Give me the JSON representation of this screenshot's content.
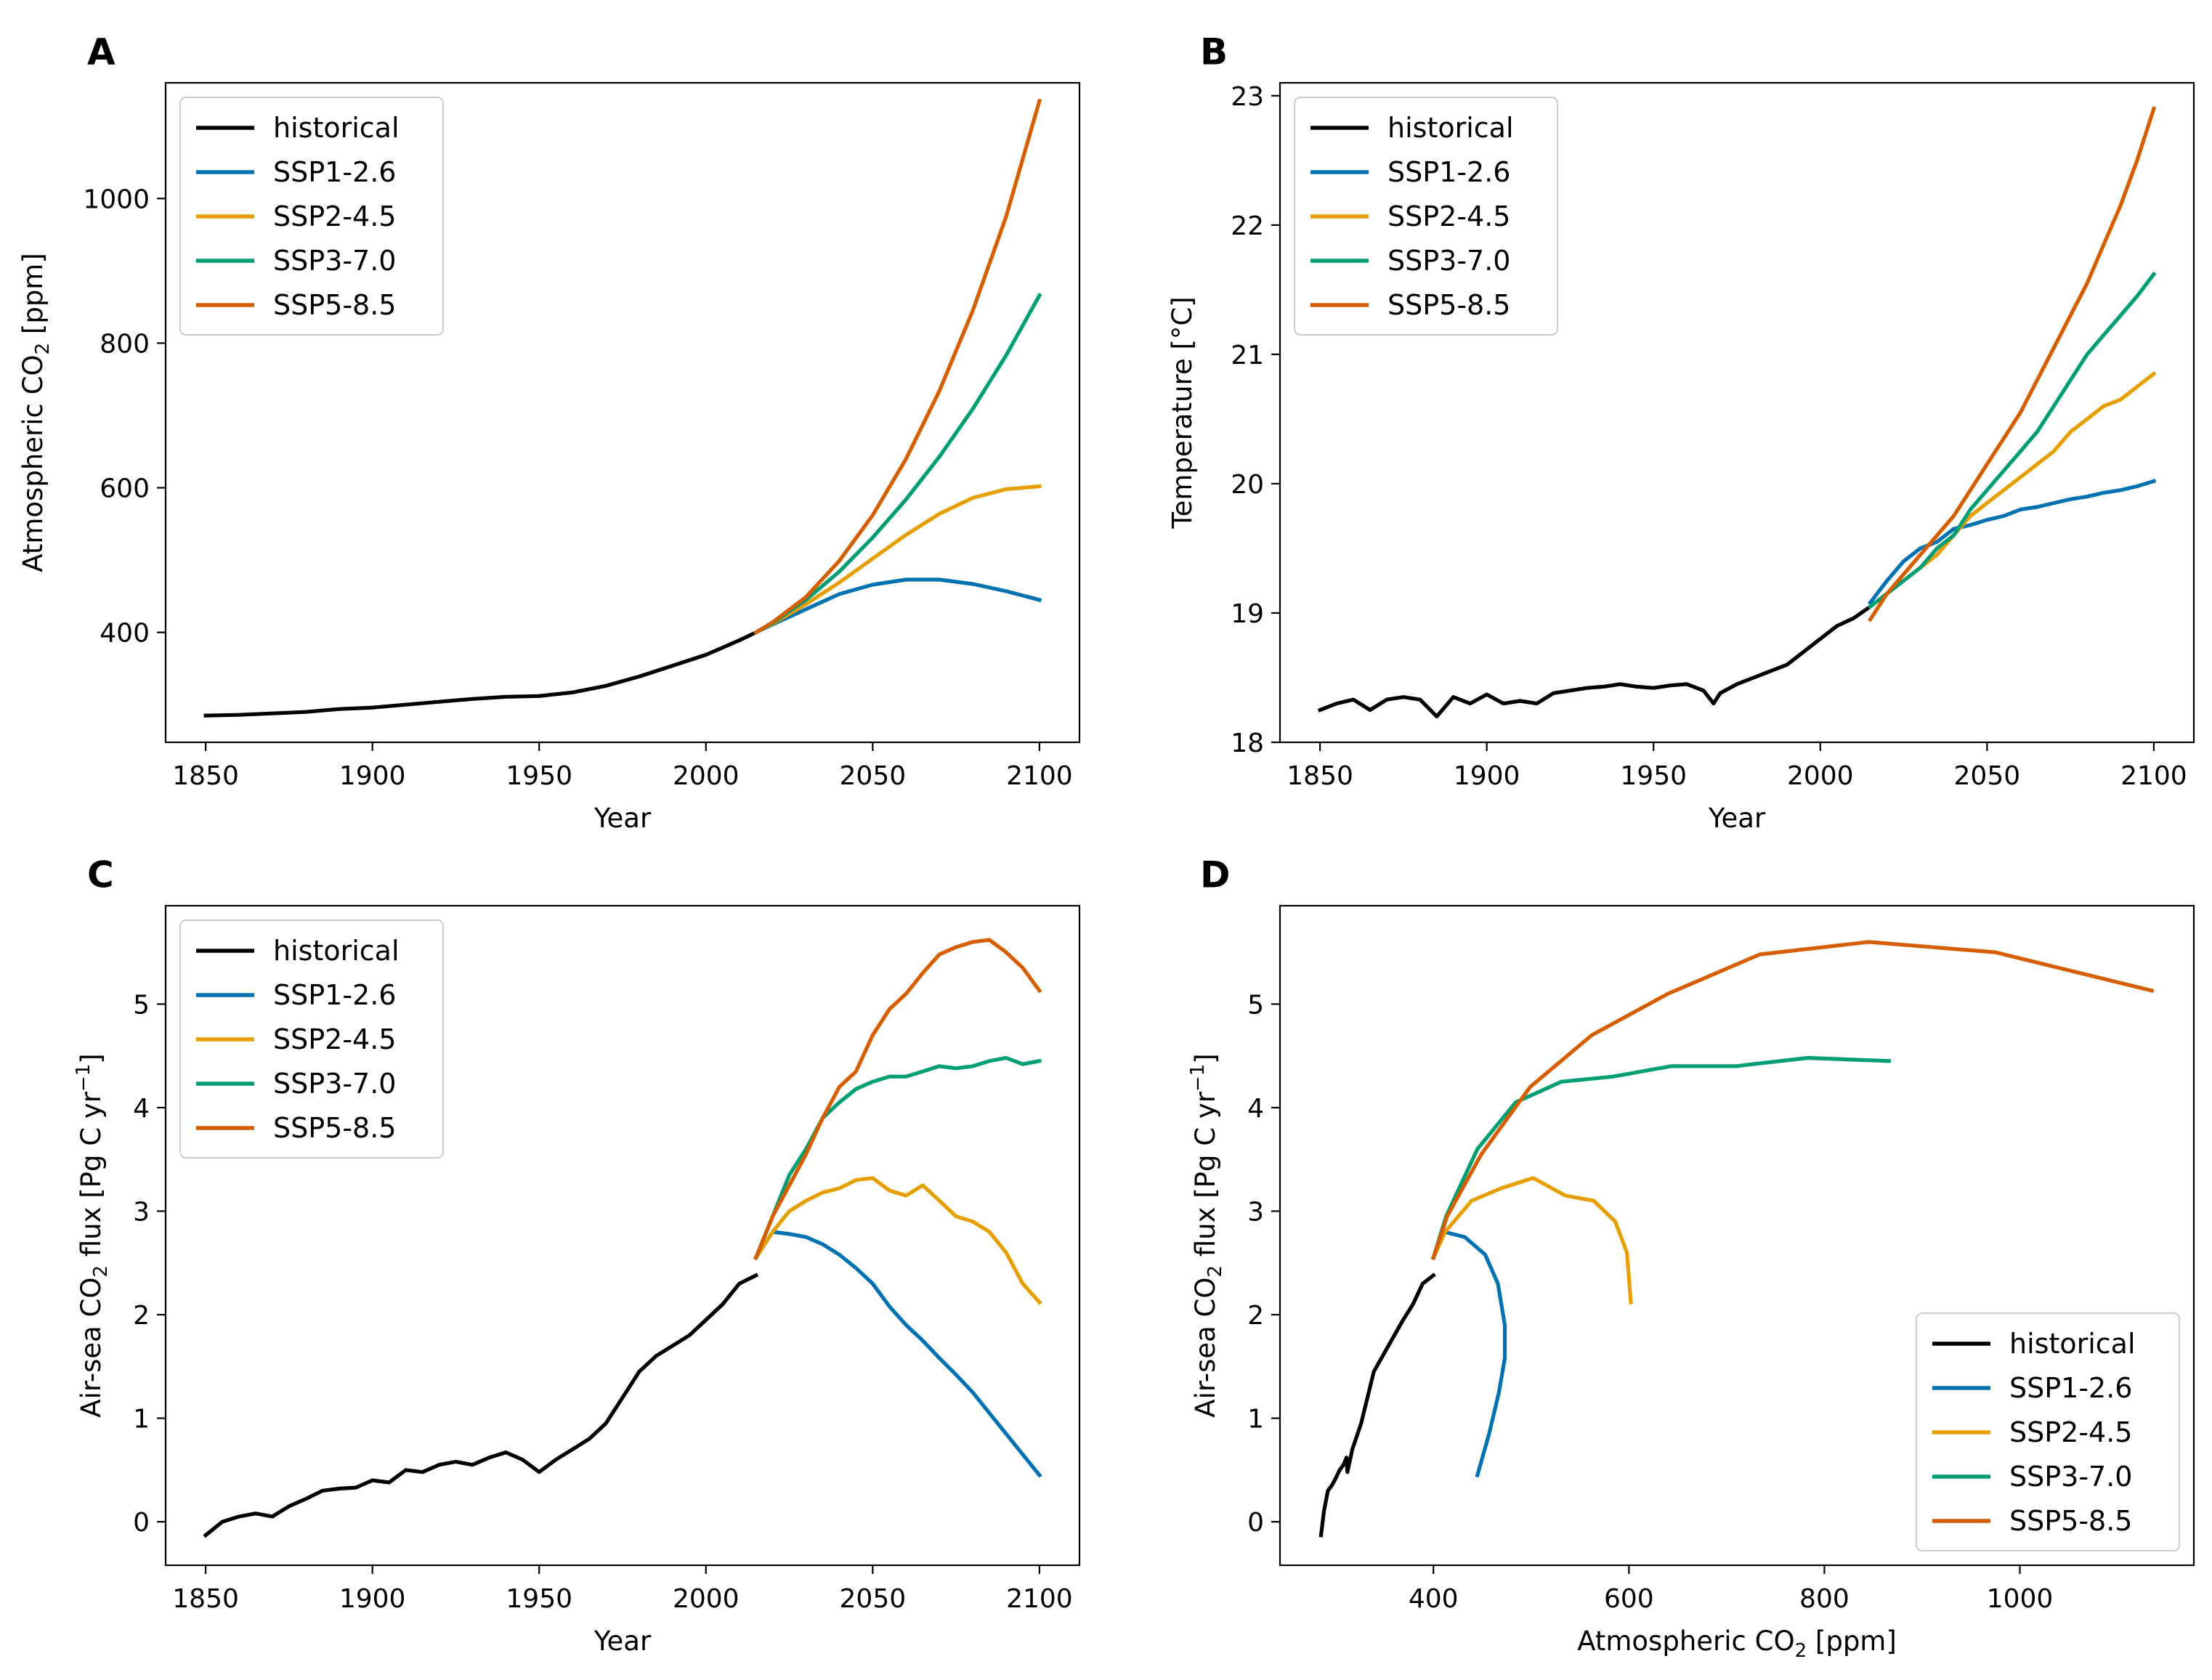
{
  "figure": {
    "series_styles": [
      {
        "name": "historical",
        "color": "#000000"
      },
      {
        "name": "SSP1-2.6",
        "color": "#0072B2"
      },
      {
        "name": "SSP2-4.5",
        "color": "#E69F00"
      },
      {
        "name": "SSP3-7.0",
        "color": "#009E73"
      },
      {
        "name": "SSP5-8.5",
        "color": "#D55E00"
      }
    ]
  },
  "chart_data": [
    {
      "panel": "A",
      "type": "line",
      "title": "",
      "xlabel": "Year",
      "ylabel_main": "Atmospheric CO",
      "ylabel_sub": "2",
      "ylabel_tail": " [ppm]",
      "xlim": [
        1838,
        2112
      ],
      "ylim": [
        248,
        1160
      ],
      "xticks": [
        1850,
        1900,
        1950,
        2000,
        2050,
        2100
      ],
      "yticks": [
        400,
        600,
        800,
        1000
      ],
      "legend_position": "upper-left",
      "grid": false,
      "series": [
        {
          "name": "historical",
          "color": "#000000",
          "x": [
            1850,
            1860,
            1870,
            1880,
            1890,
            1900,
            1910,
            1920,
            1930,
            1940,
            1950,
            1960,
            1970,
            1980,
            1990,
            2000,
            2005,
            2010,
            2015
          ],
          "y": [
            285,
            286,
            288,
            290,
            294,
            296,
            300,
            304,
            308,
            311,
            312,
            317,
            326,
            339,
            354,
            369,
            379,
            389,
            400
          ]
        },
        {
          "name": "SSP1-2.6",
          "color": "#0072B2",
          "x": [
            2015,
            2020,
            2030,
            2040,
            2050,
            2060,
            2070,
            2080,
            2090,
            2100
          ],
          "y": [
            400,
            411,
            432,
            453,
            466,
            473,
            473,
            467,
            457,
            445
          ]
        },
        {
          "name": "SSP2-4.5",
          "color": "#E69F00",
          "x": [
            2015,
            2020,
            2030,
            2040,
            2050,
            2060,
            2070,
            2080,
            2090,
            2100
          ],
          "y": [
            400,
            412,
            439,
            469,
            502,
            535,
            564,
            586,
            598,
            602
          ]
        },
        {
          "name": "SSP3-7.0",
          "color": "#009E73",
          "x": [
            2015,
            2020,
            2030,
            2040,
            2050,
            2060,
            2070,
            2080,
            2090,
            2100
          ],
          "y": [
            400,
            413,
            445,
            484,
            531,
            584,
            643,
            709,
            783,
            866
          ]
        },
        {
          "name": "SSP5-8.5",
          "color": "#D55E00",
          "x": [
            2015,
            2020,
            2030,
            2040,
            2050,
            2060,
            2070,
            2080,
            2090,
            2100
          ],
          "y": [
            400,
            414,
            449,
            499,
            562,
            640,
            734,
            845,
            975,
            1135
          ]
        }
      ]
    },
    {
      "panel": "B",
      "type": "line",
      "title": "",
      "xlabel": "Year",
      "ylabel": "Temperature [°C]",
      "xlim": [
        1838,
        2112
      ],
      "ylim": [
        18.0,
        23.1
      ],
      "xticks": [
        1850,
        1900,
        1950,
        2000,
        2050,
        2100
      ],
      "yticks": [
        18,
        19,
        20,
        21,
        22,
        23
      ],
      "legend_position": "upper-left",
      "grid": false,
      "series": [
        {
          "name": "historical",
          "color": "#000000",
          "x": [
            1850,
            1855,
            1860,
            1865,
            1870,
            1875,
            1880,
            1885,
            1890,
            1895,
            1900,
            1905,
            1910,
            1915,
            1920,
            1925,
            1930,
            1935,
            1940,
            1945,
            1950,
            1955,
            1960,
            1965,
            1968,
            1970,
            1975,
            1980,
            1985,
            1990,
            1995,
            2000,
            2005,
            2010,
            2015
          ],
          "y": [
            18.25,
            18.3,
            18.33,
            18.25,
            18.33,
            18.35,
            18.33,
            18.2,
            18.35,
            18.3,
            18.37,
            18.3,
            18.32,
            18.3,
            18.38,
            18.4,
            18.42,
            18.43,
            18.45,
            18.43,
            18.42,
            18.44,
            18.45,
            18.4,
            18.3,
            18.38,
            18.45,
            18.5,
            18.55,
            18.6,
            18.7,
            18.8,
            18.9,
            18.96,
            19.05
          ]
        },
        {
          "name": "SSP1-2.6",
          "color": "#0072B2",
          "x": [
            2015,
            2020,
            2025,
            2030,
            2035,
            2040,
            2045,
            2050,
            2055,
            2060,
            2065,
            2070,
            2075,
            2080,
            2085,
            2090,
            2095,
            2100
          ],
          "y": [
            19.08,
            19.25,
            19.4,
            19.5,
            19.55,
            19.65,
            19.68,
            19.72,
            19.75,
            19.8,
            19.82,
            19.85,
            19.88,
            19.9,
            19.93,
            19.95,
            19.98,
            20.02
          ]
        },
        {
          "name": "SSP2-4.5",
          "color": "#E69F00",
          "x": [
            2015,
            2020,
            2025,
            2030,
            2035,
            2040,
            2045,
            2050,
            2055,
            2060,
            2065,
            2070,
            2075,
            2080,
            2085,
            2090,
            2095,
            2100
          ],
          "y": [
            19.05,
            19.15,
            19.25,
            19.35,
            19.45,
            19.6,
            19.75,
            19.85,
            19.95,
            20.05,
            20.15,
            20.25,
            20.4,
            20.5,
            20.6,
            20.65,
            20.75,
            20.85
          ]
        },
        {
          "name": "SSP3-7.0",
          "color": "#009E73",
          "x": [
            2015,
            2020,
            2025,
            2030,
            2035,
            2040,
            2045,
            2050,
            2055,
            2060,
            2065,
            2070,
            2075,
            2080,
            2085,
            2090,
            2095,
            2100
          ],
          "y": [
            19.05,
            19.15,
            19.25,
            19.35,
            19.5,
            19.6,
            19.8,
            19.95,
            20.1,
            20.25,
            20.4,
            20.6,
            20.8,
            21.0,
            21.15,
            21.3,
            21.45,
            21.62
          ]
        },
        {
          "name": "SSP5-8.5",
          "color": "#D55E00",
          "x": [
            2015,
            2020,
            2025,
            2030,
            2035,
            2040,
            2045,
            2050,
            2055,
            2060,
            2065,
            2070,
            2075,
            2080,
            2085,
            2090,
            2095,
            2100
          ],
          "y": [
            18.95,
            19.15,
            19.3,
            19.45,
            19.6,
            19.75,
            19.95,
            20.15,
            20.35,
            20.55,
            20.8,
            21.05,
            21.3,
            21.55,
            21.85,
            22.15,
            22.5,
            22.9
          ]
        }
      ]
    },
    {
      "panel": "C",
      "type": "line",
      "title": "",
      "xlabel": "Year",
      "ylabel_main": "Air-sea CO",
      "ylabel_sub": "2",
      "ylabel_mid": " flux [Pg C yr",
      "ylabel_sup": "−1",
      "ylabel_tail": "]",
      "xlim": [
        1838,
        2112
      ],
      "ylim": [
        -0.42,
        5.95
      ],
      "xticks": [
        1850,
        1900,
        1950,
        2000,
        2050,
        2100
      ],
      "yticks": [
        0,
        1,
        2,
        3,
        4,
        5
      ],
      "legend_position": "upper-left",
      "grid": false,
      "series": [
        {
          "name": "historical",
          "color": "#000000",
          "x": [
            1850,
            1855,
            1860,
            1865,
            1870,
            1875,
            1880,
            1885,
            1890,
            1895,
            1900,
            1905,
            1910,
            1915,
            1920,
            1925,
            1930,
            1935,
            1940,
            1945,
            1950,
            1955,
            1960,
            1965,
            1970,
            1975,
            1980,
            1985,
            1990,
            1995,
            2000,
            2005,
            2010,
            2015
          ],
          "y": [
            -0.13,
            0.0,
            0.05,
            0.08,
            0.05,
            0.15,
            0.22,
            0.3,
            0.32,
            0.33,
            0.4,
            0.38,
            0.5,
            0.48,
            0.55,
            0.58,
            0.55,
            0.62,
            0.67,
            0.6,
            0.48,
            0.6,
            0.7,
            0.8,
            0.95,
            1.2,
            1.45,
            1.6,
            1.7,
            1.8,
            1.95,
            2.1,
            2.3,
            2.38
          ]
        },
        {
          "name": "SSP1-2.6",
          "color": "#0072B2",
          "x": [
            2015,
            2020,
            2025,
            2030,
            2035,
            2040,
            2045,
            2050,
            2055,
            2060,
            2065,
            2070,
            2075,
            2080,
            2085,
            2090,
            2095,
            2100
          ],
          "y": [
            2.55,
            2.8,
            2.78,
            2.75,
            2.68,
            2.58,
            2.45,
            2.3,
            2.08,
            1.9,
            1.75,
            1.58,
            1.42,
            1.25,
            1.05,
            0.85,
            0.65,
            0.45
          ]
        },
        {
          "name": "SSP2-4.5",
          "color": "#E69F00",
          "x": [
            2015,
            2020,
            2025,
            2030,
            2035,
            2040,
            2045,
            2050,
            2055,
            2060,
            2065,
            2070,
            2075,
            2080,
            2085,
            2090,
            2095,
            2100
          ],
          "y": [
            2.55,
            2.8,
            3.0,
            3.1,
            3.18,
            3.22,
            3.3,
            3.32,
            3.2,
            3.15,
            3.25,
            3.1,
            2.95,
            2.9,
            2.8,
            2.6,
            2.3,
            2.12
          ]
        },
        {
          "name": "SSP3-7.0",
          "color": "#009E73",
          "x": [
            2015,
            2020,
            2025,
            2030,
            2035,
            2040,
            2045,
            2050,
            2055,
            2060,
            2065,
            2070,
            2075,
            2080,
            2085,
            2090,
            2095,
            2100
          ],
          "y": [
            2.55,
            2.95,
            3.35,
            3.6,
            3.9,
            4.05,
            4.18,
            4.25,
            4.3,
            4.3,
            4.35,
            4.4,
            4.38,
            4.4,
            4.45,
            4.48,
            4.42,
            4.45
          ]
        },
        {
          "name": "SSP5-8.5",
          "color": "#D55E00",
          "x": [
            2015,
            2020,
            2025,
            2030,
            2035,
            2040,
            2045,
            2050,
            2055,
            2060,
            2065,
            2070,
            2075,
            2080,
            2085,
            2090,
            2095,
            2100
          ],
          "y": [
            2.55,
            2.95,
            3.25,
            3.55,
            3.9,
            4.2,
            4.35,
            4.7,
            4.95,
            5.1,
            5.3,
            5.48,
            5.55,
            5.6,
            5.62,
            5.5,
            5.35,
            5.13
          ]
        }
      ]
    },
    {
      "panel": "D",
      "type": "line",
      "title": "",
      "xlabel_main": "Atmospheric CO",
      "xlabel_sub": "2",
      "xlabel_tail": " [ppm]",
      "ylabel_main": "Air-sea CO",
      "ylabel_sub": "2",
      "ylabel_mid": " flux [Pg C yr",
      "ylabel_sup": "−1",
      "ylabel_tail": "]",
      "xlim": [
        243,
        1178
      ],
      "ylim": [
        -0.42,
        5.95
      ],
      "xticks": [
        400,
        600,
        800,
        1000
      ],
      "yticks": [
        0,
        1,
        2,
        3,
        4,
        5
      ],
      "legend_position": "lower-right",
      "grid": false,
      "series": [
        {
          "name": "historical",
          "color": "#000000",
          "x": [
            285,
            288,
            292,
            296,
            300,
            304,
            308,
            311,
            312,
            317,
            326,
            339,
            354,
            369,
            379,
            389,
            400
          ],
          "y": [
            -0.13,
            0.1,
            0.3,
            0.35,
            0.42,
            0.5,
            0.55,
            0.62,
            0.48,
            0.7,
            0.95,
            1.45,
            1.7,
            1.95,
            2.1,
            2.3,
            2.38
          ]
        },
        {
          "name": "SSP1-2.6",
          "color": "#0072B2",
          "x": [
            400,
            411,
            432,
            453,
            466,
            473,
            473,
            467,
            457,
            445
          ],
          "y": [
            2.55,
            2.8,
            2.75,
            2.58,
            2.3,
            1.9,
            1.58,
            1.25,
            0.85,
            0.45
          ]
        },
        {
          "name": "SSP2-4.5",
          "color": "#E69F00",
          "x": [
            400,
            412,
            439,
            469,
            502,
            535,
            564,
            586,
            598,
            602
          ],
          "y": [
            2.55,
            2.8,
            3.1,
            3.22,
            3.32,
            3.15,
            3.1,
            2.9,
            2.6,
            2.12
          ]
        },
        {
          "name": "SSP3-7.0",
          "color": "#009E73",
          "x": [
            400,
            413,
            445,
            484,
            531,
            584,
            643,
            709,
            783,
            866
          ],
          "y": [
            2.55,
            2.95,
            3.6,
            4.05,
            4.25,
            4.3,
            4.4,
            4.4,
            4.48,
            4.45
          ]
        },
        {
          "name": "SSP5-8.5",
          "color": "#D55E00",
          "x": [
            400,
            414,
            449,
            499,
            562,
            640,
            734,
            845,
            975,
            1135
          ],
          "y": [
            2.55,
            2.95,
            3.55,
            4.2,
            4.7,
            5.1,
            5.48,
            5.6,
            5.5,
            5.13
          ]
        }
      ]
    }
  ]
}
